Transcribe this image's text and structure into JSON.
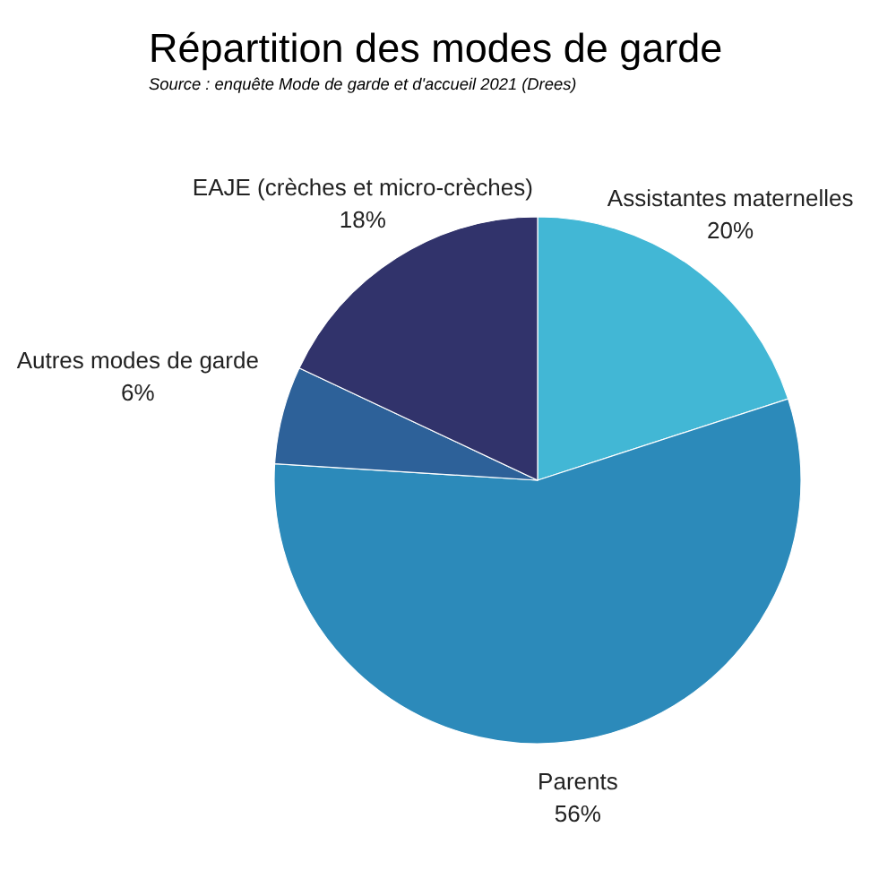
{
  "chart_data": {
    "type": "pie",
    "title": "Répartition des modes de garde",
    "subtitle": "Source : enquête Mode de garde et d'accueil 2021 (Drees)",
    "categories": [
      "Assistantes maternelles",
      "Parents",
      "Autres modes de garde",
      "EAJE (crèches et micro-crèches)"
    ],
    "values": [
      20,
      56,
      6,
      18
    ],
    "colors": [
      "#42b7d5",
      "#2c8aba",
      "#2d6199",
      "#31336b"
    ],
    "value_labels": [
      "20%",
      "56%",
      "6%",
      "18%"
    ]
  }
}
